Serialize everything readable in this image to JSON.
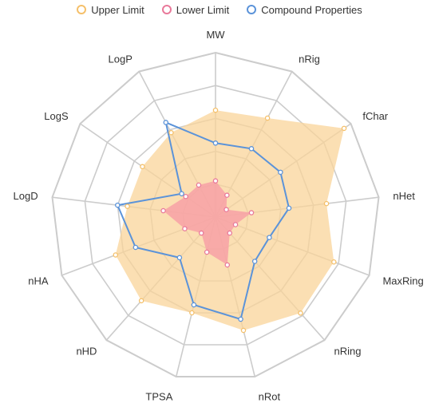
{
  "chart_data": {
    "type": "radar",
    "axes": [
      "MW",
      "nRig",
      "fChar",
      "nHet",
      "MaxRing",
      "nRing",
      "nRot",
      "TPSA",
      "nHD",
      "nHA",
      "LogD",
      "LogS",
      "LogP"
    ],
    "range": [
      0,
      1
    ],
    "series": [
      {
        "name": "Upper Limit",
        "color": "#f5c06a",
        "fill": "#f9d49a",
        "values": [
          0.65,
          0.68,
          0.95,
          0.68,
          0.77,
          0.78,
          0.71,
          0.6,
          0.68,
          0.65,
          0.54,
          0.54,
          0.58
        ]
      },
      {
        "name": "Lower Limit",
        "color": "#e9799a",
        "fill": "#f7a1a6",
        "values": [
          0.22,
          0.15,
          0.08,
          0.22,
          0.13,
          0.13,
          0.3,
          0.22,
          0.13,
          0.2,
          0.32,
          0.22,
          0.22
        ]
      },
      {
        "name": "Compound Properties",
        "color": "#5b93d9",
        "values": [
          0.45,
          0.47,
          0.48,
          0.45,
          0.35,
          0.36,
          0.64,
          0.55,
          0.33,
          0.52,
          0.6,
          0.25,
          0.65
        ]
      }
    ]
  }
}
